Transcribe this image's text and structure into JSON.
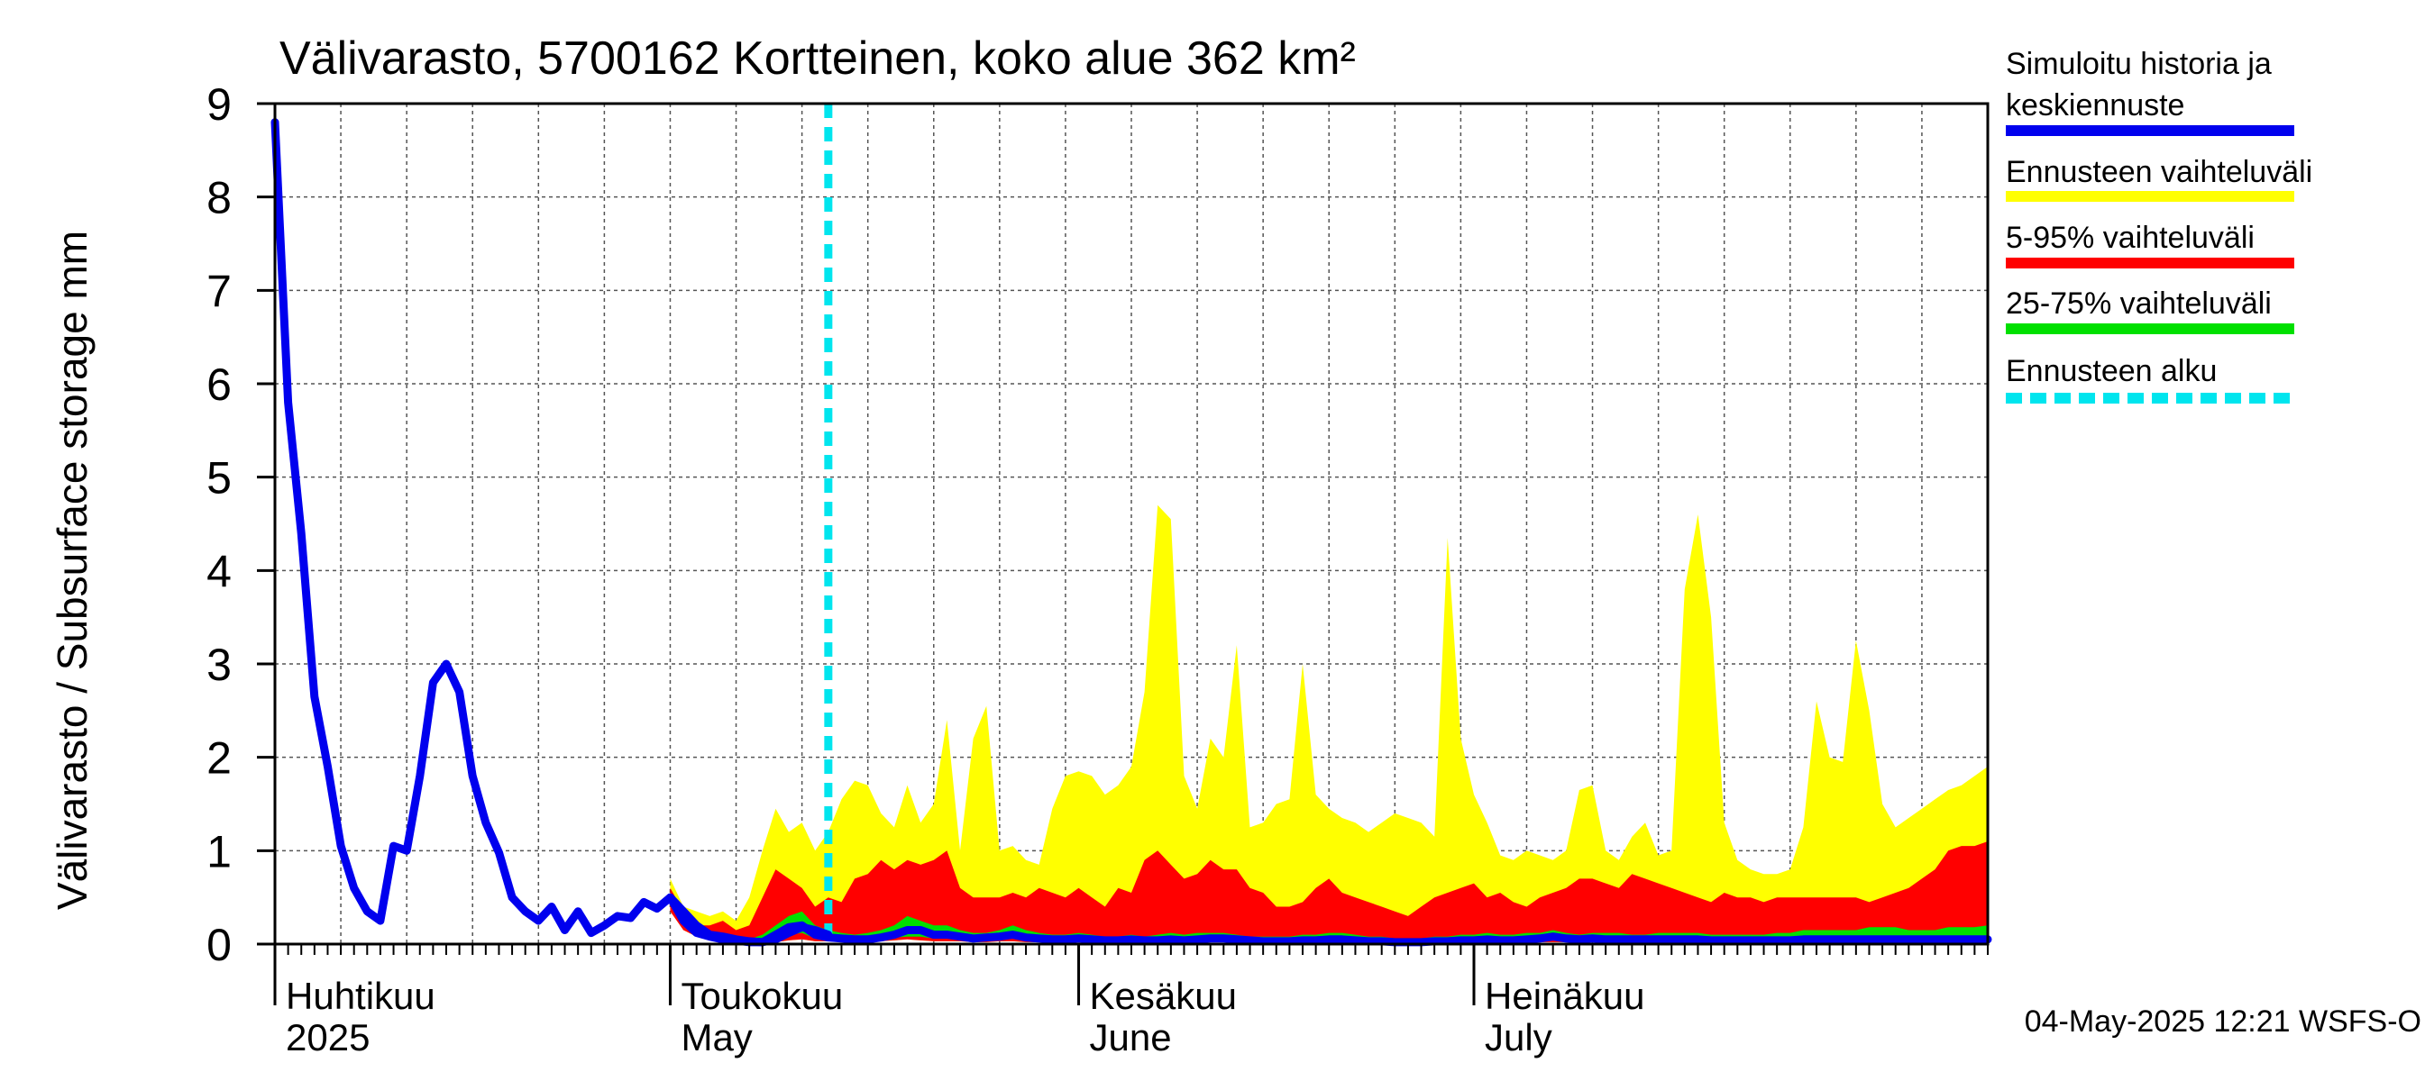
{
  "chart_data": {
    "type": "area",
    "title": "Välivarasto, 5700162 Kortteinen, koko alue 362 km²",
    "ylabel": "Välivarasto / Subsurface storage  mm",
    "ylim": [
      0,
      9
    ],
    "yticks": [
      "0",
      "1",
      "2",
      "3",
      "4",
      "5",
      "6",
      "7",
      "8",
      "9"
    ],
    "x_range_days": [
      0,
      130
    ],
    "forecast_start_day": 42,
    "month_labels": [
      {
        "fi": "Huhtikuu",
        "en": "2025",
        "day": 0
      },
      {
        "fi": "Toukokuu",
        "en": "May",
        "day": 30
      },
      {
        "fi": "Kesäkuu",
        "en": "June",
        "day": 61
      },
      {
        "fi": "Heinäkuu",
        "en": "July",
        "day": 91
      }
    ],
    "footer": "04-May-2025 12:21 WSFS-O",
    "legend": [
      {
        "label": "Simuloitu historia ja",
        "label2": "keskiennuste",
        "color": "#0000ee",
        "style": "solid"
      },
      {
        "label": "Ennusteen vaihteluväli",
        "color": "#ffff00",
        "style": "solid"
      },
      {
        "label": "5-95% vaihteluväli",
        "color": "#ff0000",
        "style": "solid"
      },
      {
        "label": "25-75% vaihteluväli",
        "color": "#00e000",
        "style": "solid"
      },
      {
        "label": "Ennusteen alku",
        "color": "#00e5ee",
        "style": "dashed"
      }
    ],
    "history": {
      "x": [
        0,
        1,
        2,
        3,
        4,
        5,
        6,
        7,
        8,
        9,
        10,
        11,
        12,
        13,
        14,
        15,
        16,
        17,
        18,
        19,
        20,
        21,
        22,
        23,
        24,
        25,
        26,
        27,
        28,
        29,
        30,
        31,
        32,
        33,
        34,
        35,
        36,
        37,
        38,
        39,
        40,
        41,
        42
      ],
      "y": [
        8.8,
        5.8,
        4.4,
        2.65,
        1.9,
        1.05,
        0.6,
        0.35,
        0.25,
        1.05,
        1.0,
        1.8,
        2.8,
        3.0,
        2.7,
        1.8,
        1.3,
        0.98,
        0.5,
        0.35,
        0.25,
        0.4,
        0.15,
        0.35,
        0.12,
        0.2,
        0.3,
        0.28,
        0.45,
        0.38,
        0.5,
        0.35,
        0.2,
        0.1,
        0.08,
        0.05,
        0.03,
        0.02,
        0.05,
        0.12,
        0.18,
        0.15,
        0.1
      ]
    },
    "forecast": {
      "x": [
        30,
        31,
        32,
        33,
        34,
        35,
        36,
        37,
        38,
        39,
        40,
        41,
        42,
        43,
        44,
        45,
        46,
        47,
        48,
        49,
        50,
        51,
        52,
        53,
        54,
        55,
        56,
        57,
        58,
        59,
        60,
        61,
        62,
        63,
        64,
        65,
        66,
        67,
        68,
        69,
        70,
        71,
        72,
        73,
        74,
        75,
        76,
        77,
        78,
        79,
        80,
        81,
        82,
        83,
        84,
        85,
        86,
        87,
        88,
        89,
        90,
        91,
        92,
        93,
        94,
        95,
        96,
        97,
        98,
        99,
        100,
        101,
        102,
        103,
        104,
        105,
        106,
        107,
        108,
        109,
        110,
        111,
        112,
        113,
        114,
        115,
        116,
        117,
        118,
        119,
        120,
        121,
        122,
        123,
        124,
        125,
        126,
        127,
        128,
        129,
        130
      ],
      "median": [
        0.5,
        0.25,
        0.12,
        0.08,
        0.05,
        0.04,
        0.02,
        0.02,
        0.1,
        0.18,
        0.2,
        0.1,
        0.07,
        0.06,
        0.05,
        0.05,
        0.07,
        0.1,
        0.15,
        0.15,
        0.1,
        0.1,
        0.08,
        0.06,
        0.07,
        0.08,
        0.1,
        0.07,
        0.06,
        0.05,
        0.05,
        0.06,
        0.05,
        0.04,
        0.04,
        0.05,
        0.04,
        0.04,
        0.05,
        0.04,
        0.05,
        0.06,
        0.06,
        0.05,
        0.04,
        0.03,
        0.03,
        0.03,
        0.04,
        0.04,
        0.05,
        0.05,
        0.04,
        0.03,
        0.03,
        0.02,
        0.02,
        0.02,
        0.03,
        0.03,
        0.04,
        0.04,
        0.05,
        0.04,
        0.04,
        0.05,
        0.06,
        0.08,
        0.06,
        0.05,
        0.06,
        0.05,
        0.05,
        0.05,
        0.05,
        0.05,
        0.05,
        0.05,
        0.05,
        0.04,
        0.04,
        0.04,
        0.04,
        0.04,
        0.04,
        0.04,
        0.05,
        0.05,
        0.05,
        0.05,
        0.05,
        0.05,
        0.05,
        0.05,
        0.05,
        0.05,
        0.05,
        0.05,
        0.05,
        0.05,
        0.05
      ],
      "p25": [
        0.45,
        0.2,
        0.1,
        0.06,
        0.04,
        0.03,
        0.02,
        0.02,
        0.05,
        0.1,
        0.12,
        0.06,
        0.05,
        0.04,
        0.04,
        0.04,
        0.05,
        0.07,
        0.08,
        0.08,
        0.06,
        0.06,
        0.05,
        0.05,
        0.05,
        0.05,
        0.06,
        0.05,
        0.04,
        0.04,
        0.04,
        0.04,
        0.04,
        0.03,
        0.03,
        0.04,
        0.03,
        0.03,
        0.04,
        0.03,
        0.04,
        0.04,
        0.04,
        0.04,
        0.03,
        0.02,
        0.02,
        0.02,
        0.03,
        0.03,
        0.04,
        0.04,
        0.03,
        0.02,
        0.02,
        0.01,
        0.01,
        0.01,
        0.02,
        0.02,
        0.03,
        0.03,
        0.04,
        0.03,
        0.03,
        0.04,
        0.04,
        0.05,
        0.04,
        0.04,
        0.04,
        0.04,
        0.04,
        0.04,
        0.04,
        0.04,
        0.04,
        0.04,
        0.04,
        0.03,
        0.03,
        0.03,
        0.03,
        0.03,
        0.03,
        0.03,
        0.04,
        0.04,
        0.04,
        0.04,
        0.04,
        0.04,
        0.04,
        0.04,
        0.04,
        0.04,
        0.04,
        0.04,
        0.04,
        0.04,
        0.04
      ],
      "p75": [
        0.55,
        0.3,
        0.15,
        0.12,
        0.08,
        0.06,
        0.05,
        0.1,
        0.2,
        0.3,
        0.35,
        0.2,
        0.15,
        0.12,
        0.1,
        0.12,
        0.15,
        0.2,
        0.3,
        0.25,
        0.2,
        0.2,
        0.15,
        0.12,
        0.12,
        0.15,
        0.2,
        0.15,
        0.12,
        0.1,
        0.1,
        0.12,
        0.1,
        0.08,
        0.08,
        0.1,
        0.08,
        0.1,
        0.12,
        0.1,
        0.12,
        0.12,
        0.12,
        0.1,
        0.08,
        0.08,
        0.08,
        0.08,
        0.1,
        0.1,
        0.12,
        0.12,
        0.1,
        0.08,
        0.08,
        0.06,
        0.06,
        0.06,
        0.08,
        0.08,
        0.1,
        0.1,
        0.12,
        0.1,
        0.1,
        0.12,
        0.12,
        0.15,
        0.12,
        0.1,
        0.12,
        0.12,
        0.12,
        0.1,
        0.1,
        0.12,
        0.12,
        0.12,
        0.12,
        0.1,
        0.1,
        0.1,
        0.1,
        0.1,
        0.12,
        0.12,
        0.15,
        0.15,
        0.15,
        0.15,
        0.15,
        0.18,
        0.18,
        0.18,
        0.15,
        0.15,
        0.15,
        0.18,
        0.18,
        0.18,
        0.2
      ],
      "p5": [
        0.35,
        0.15,
        0.08,
        0.05,
        0.03,
        0.02,
        0.01,
        0.01,
        0.02,
        0.04,
        0.05,
        0.03,
        0.03,
        0.02,
        0.02,
        0.02,
        0.03,
        0.04,
        0.05,
        0.04,
        0.03,
        0.03,
        0.03,
        0.02,
        0.02,
        0.03,
        0.03,
        0.02,
        0.02,
        0.02,
        0.02,
        0.02,
        0.02,
        0.01,
        0.01,
        0.02,
        0.01,
        0.01,
        0.02,
        0.01,
        0.02,
        0.02,
        0.02,
        0.02,
        0.01,
        0.01,
        0.01,
        0.01,
        0.01,
        0.01,
        0.02,
        0.02,
        0.01,
        0.01,
        0.01,
        0.01,
        0.01,
        0.01,
        0.01,
        0.01,
        0.02,
        0.02,
        0.02,
        0.01,
        0.01,
        0.02,
        0.02,
        0.02,
        0.02,
        0.02,
        0.02,
        0.02,
        0.02,
        0.02,
        0.02,
        0.02,
        0.02,
        0.02,
        0.02,
        0.01,
        0.01,
        0.01,
        0.01,
        0.01,
        0.01,
        0.01,
        0.02,
        0.02,
        0.02,
        0.02,
        0.02,
        0.02,
        0.02,
        0.02,
        0.02,
        0.02,
        0.02,
        0.02,
        0.02,
        0.02,
        0.02
      ],
      "p95": [
        0.6,
        0.35,
        0.2,
        0.2,
        0.25,
        0.15,
        0.2,
        0.5,
        0.8,
        0.7,
        0.6,
        0.4,
        0.5,
        0.45,
        0.7,
        0.75,
        0.9,
        0.8,
        0.9,
        0.85,
        0.9,
        1.0,
        0.6,
        0.5,
        0.5,
        0.5,
        0.55,
        0.5,
        0.6,
        0.55,
        0.5,
        0.6,
        0.5,
        0.4,
        0.6,
        0.55,
        0.9,
        1.0,
        0.85,
        0.7,
        0.75,
        0.9,
        0.8,
        0.8,
        0.6,
        0.55,
        0.4,
        0.4,
        0.45,
        0.6,
        0.7,
        0.55,
        0.5,
        0.45,
        0.4,
        0.35,
        0.3,
        0.4,
        0.5,
        0.55,
        0.6,
        0.65,
        0.5,
        0.55,
        0.45,
        0.4,
        0.5,
        0.55,
        0.6,
        0.7,
        0.7,
        0.65,
        0.6,
        0.75,
        0.7,
        0.65,
        0.6,
        0.55,
        0.5,
        0.45,
        0.55,
        0.5,
        0.5,
        0.45,
        0.5,
        0.5,
        0.5,
        0.5,
        0.5,
        0.5,
        0.5,
        0.45,
        0.5,
        0.55,
        0.6,
        0.7,
        0.8,
        1.0,
        1.05,
        1.05,
        1.1
      ],
      "max": [
        0.7,
        0.4,
        0.35,
        0.3,
        0.35,
        0.25,
        0.5,
        1.0,
        1.45,
        1.2,
        1.3,
        1.0,
        1.2,
        1.55,
        1.75,
        1.7,
        1.4,
        1.25,
        1.7,
        1.3,
        1.5,
        2.4,
        1.0,
        2.2,
        2.55,
        1.0,
        1.05,
        0.9,
        0.85,
        1.45,
        1.8,
        1.85,
        1.8,
        1.6,
        1.7,
        1.9,
        2.7,
        4.7,
        4.55,
        1.8,
        1.45,
        2.2,
        2.0,
        3.2,
        1.25,
        1.3,
        1.5,
        1.55,
        3.0,
        1.6,
        1.45,
        1.35,
        1.3,
        1.2,
        1.3,
        1.4,
        1.35,
        1.3,
        1.15,
        4.35,
        2.2,
        1.6,
        1.3,
        0.95,
        0.9,
        1.0,
        0.95,
        0.9,
        1.0,
        1.65,
        1.7,
        1.0,
        0.9,
        1.15,
        1.3,
        0.95,
        1.0,
        3.8,
        4.6,
        3.5,
        1.3,
        0.9,
        0.8,
        0.75,
        0.75,
        0.8,
        1.25,
        2.6,
        2.0,
        1.95,
        3.25,
        2.5,
        1.5,
        1.25,
        1.35,
        1.45,
        1.55,
        1.65,
        1.7,
        1.8,
        1.9
      ]
    }
  }
}
